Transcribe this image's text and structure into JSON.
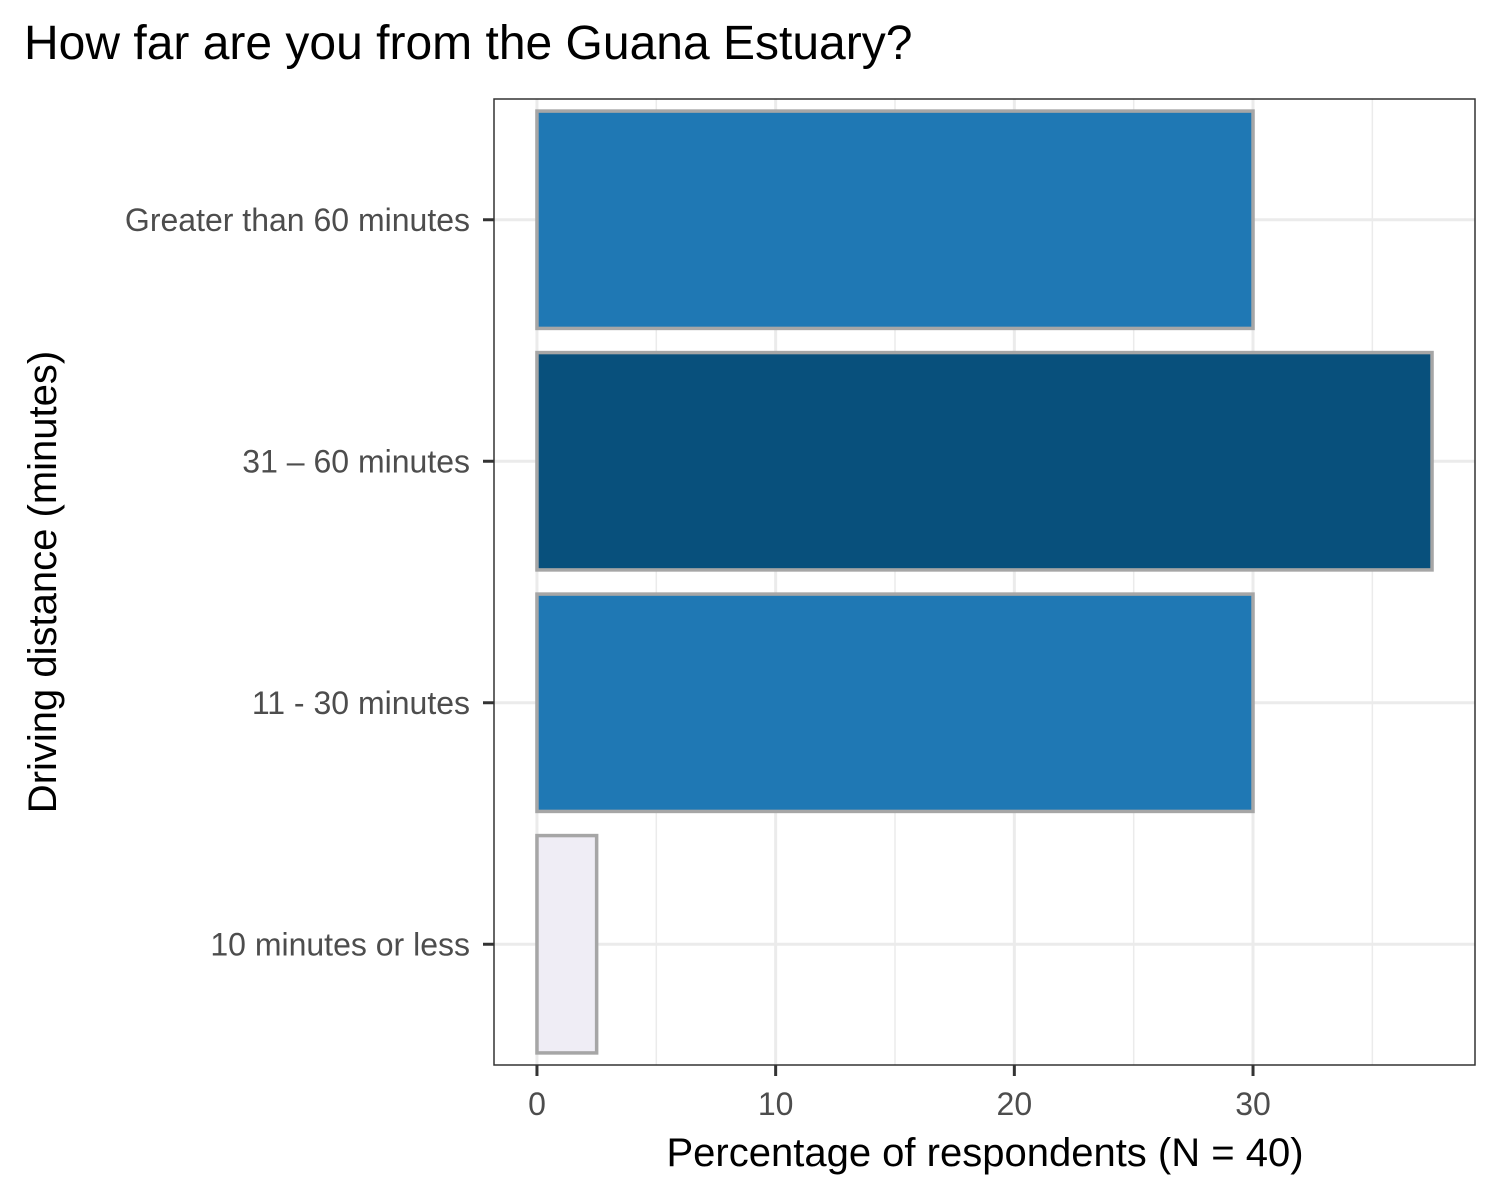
{
  "chart_data": {
    "type": "bar",
    "orientation": "horizontal",
    "title": "How far are you from the Guana Estuary?",
    "xlabel": "Percentage of respondents (N = 40)",
    "ylabel": "Driving distance (minutes)",
    "categories": [
      "10 minutes or less",
      "11 - 30 minutes",
      "31 – 60 minutes",
      "Greater than 60 minutes"
    ],
    "values": [
      2.5,
      30,
      37.5,
      30
    ],
    "bar_colors": [
      "#efedf5",
      "#1f78b4",
      "#08507c",
      "#1f78b4"
    ],
    "bar_outline": "#a6a6a6",
    "xlim": [
      -1.8,
      39.3
    ],
    "xticks": [
      0,
      10,
      20,
      30
    ],
    "xticks_minor": [
      5,
      15,
      25,
      35
    ],
    "grid": true,
    "legend": "none"
  }
}
